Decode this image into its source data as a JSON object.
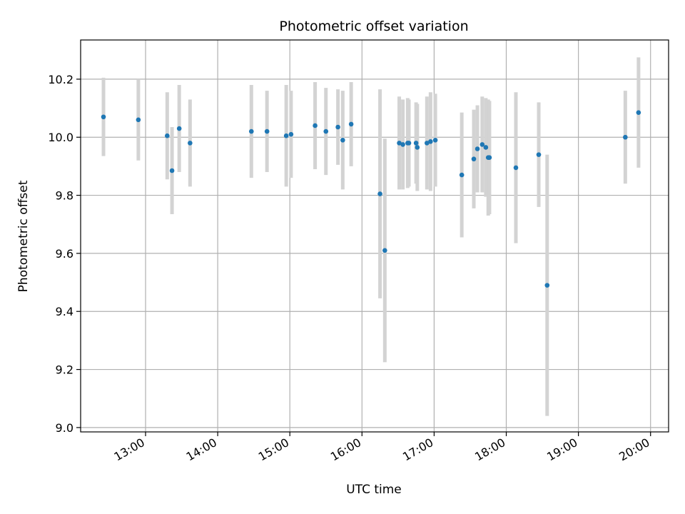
{
  "chart_data": {
    "type": "scatter",
    "title": "Photometric offset variation",
    "xlabel": "UTC time",
    "ylabel": "Photometric offset",
    "xlim": [
      "12:06",
      "20:15"
    ],
    "ylim": [
      8.985,
      10.335
    ],
    "x_ticks": [
      "13:00",
      "14:00",
      "15:00",
      "16:00",
      "17:00",
      "18:00",
      "19:00",
      "20:00"
    ],
    "y_ticks": [
      "9.0",
      "9.2",
      "9.4",
      "9.6",
      "9.8",
      "10.0",
      "10.2"
    ],
    "grid": true,
    "colors": {
      "point": "#1f77b4",
      "errorbar": "#d3d3d3",
      "grid": "#b0b0b0"
    },
    "points": [
      {
        "time": "12:25",
        "y": 10.07,
        "err": 0.135
      },
      {
        "time": "12:54",
        "y": 10.06,
        "err": 0.14
      },
      {
        "time": "13:18",
        "y": 10.005,
        "err": 0.15
      },
      {
        "time": "13:22",
        "y": 9.885,
        "err": 0.15
      },
      {
        "time": "13:28",
        "y": 10.03,
        "err": 0.15
      },
      {
        "time": "13:37",
        "y": 9.98,
        "err": 0.15
      },
      {
        "time": "14:28",
        "y": 10.02,
        "err": 0.16
      },
      {
        "time": "14:41",
        "y": 10.02,
        "err": 0.14
      },
      {
        "time": "14:57",
        "y": 10.005,
        "err": 0.175
      },
      {
        "time": "15:01",
        "y": 10.01,
        "err": 0.15
      },
      {
        "time": "15:21",
        "y": 10.04,
        "err": 0.15
      },
      {
        "time": "15:30",
        "y": 10.02,
        "err": 0.15
      },
      {
        "time": "15:40",
        "y": 10.035,
        "err": 0.13
      },
      {
        "time": "15:44",
        "y": 9.99,
        "err": 0.17
      },
      {
        "time": "15:51",
        "y": 10.045,
        "err": 0.145
      },
      {
        "time": "16:15",
        "y": 9.805,
        "err": 0.36
      },
      {
        "time": "16:19",
        "y": 9.61,
        "err": 0.385
      },
      {
        "time": "16:31",
        "y": 9.98,
        "err": 0.16
      },
      {
        "time": "16:34",
        "y": 9.975,
        "err": 0.155
      },
      {
        "time": "16:38",
        "y": 9.98,
        "err": 0.155
      },
      {
        "time": "16:39",
        "y": 9.98,
        "err": 0.15
      },
      {
        "time": "16:45",
        "y": 9.98,
        "err": 0.14
      },
      {
        "time": "16:46",
        "y": 9.965,
        "err": 0.15
      },
      {
        "time": "16:54",
        "y": 9.98,
        "err": 0.16
      },
      {
        "time": "16:57",
        "y": 9.985,
        "err": 0.17
      },
      {
        "time": "17:01",
        "y": 9.99,
        "err": 0.16
      },
      {
        "time": "17:23",
        "y": 9.87,
        "err": 0.215
      },
      {
        "time": "17:33",
        "y": 9.925,
        "err": 0.17
      },
      {
        "time": "17:36",
        "y": 9.96,
        "err": 0.15
      },
      {
        "time": "17:40",
        "y": 9.975,
        "err": 0.165
      },
      {
        "time": "17:43",
        "y": 9.965,
        "err": 0.17
      },
      {
        "time": "17:45",
        "y": 9.93,
        "err": 0.2
      },
      {
        "time": "17:46",
        "y": 9.93,
        "err": 0.195
      },
      {
        "time": "18:08",
        "y": 9.895,
        "err": 0.26
      },
      {
        "time": "18:27",
        "y": 9.94,
        "err": 0.18
      },
      {
        "time": "18:34",
        "y": 9.49,
        "err": 0.45
      },
      {
        "time": "19:39",
        "y": 10.0,
        "err": 0.16
      },
      {
        "time": "19:50",
        "y": 10.085,
        "err": 0.19
      }
    ]
  }
}
